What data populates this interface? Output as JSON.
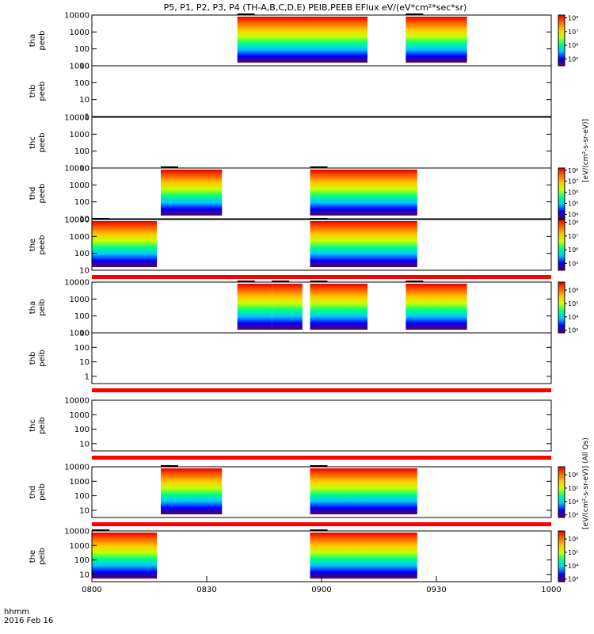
{
  "chart_data": {
    "type": "heatmap",
    "title": "P5, P1, P2, P3, P4 (TH-A,B,C,D,E) PEIB,PEEB EFlux eV/(eV*cm²*sec*sr)",
    "x_range": [
      "0800",
      "1000"
    ],
    "x_ticks": [
      "0800",
      "0830",
      "0900",
      "0930",
      "1000"
    ],
    "time_label": "hhmm",
    "date_label": "2016 Feb 16",
    "colormap": [
      "#5a005a",
      "#0000ff",
      "#00c8ff",
      "#00ff80",
      "#c8ff00",
      "#ffc800",
      "#ff6400",
      "#e60000"
    ],
    "colorbar_unit_electron": "[eV/(cm²-s-sr-eV)]",
    "colorbar_unit_ion": "[eV/(cm²-s-sr-eV)] (All Qs)",
    "panels": [
      {
        "label": [
          "tha",
          "peeb"
        ],
        "ylog": [
          1,
          4
        ],
        "yticks": [
          "10",
          "100",
          "1000",
          "10000"
        ],
        "intervals": [
          [
            "0838",
            "0912"
          ],
          [
            "0922",
            "0938"
          ]
        ],
        "bottom_gap": false,
        "colorbar": {
          "ticks": [
            "10⁵",
            "10⁶",
            "10⁷",
            "10⁸"
          ],
          "min_exp": 4.5,
          "max_exp": 8.2
        }
      },
      {
        "label": [
          "thb",
          "peeb"
        ],
        "ylog": [
          0,
          3
        ],
        "yticks": [
          "1",
          "10",
          "100",
          "1000"
        ],
        "intervals": [],
        "bottom_gap": false,
        "colorbar": null
      },
      {
        "label": [
          "thc",
          "peeb"
        ],
        "ylog": [
          1,
          4
        ],
        "yticks": [
          "10",
          "100",
          "1000",
          "10000"
        ],
        "intervals": [],
        "bottom_gap": false,
        "colorbar": null
      },
      {
        "label": [
          "thd",
          "peeb"
        ],
        "ylog": [
          1,
          4
        ],
        "yticks": [
          "10",
          "100",
          "1000",
          "10000"
        ],
        "intervals": [
          [
            "0818",
            "0834"
          ],
          [
            "0857",
            "0925"
          ]
        ],
        "bottom_gap": false,
        "colorbar": {
          "ticks": [
            "10⁴",
            "10⁵",
            "10⁶",
            "10⁷",
            "10⁸"
          ],
          "min_exp": 3.6,
          "max_exp": 8.2
        }
      },
      {
        "label": [
          "the",
          "peeb"
        ],
        "ylog": [
          1,
          4
        ],
        "yticks": [
          "10",
          "100",
          "1000",
          "10000"
        ],
        "intervals": [
          [
            "0800",
            "0817"
          ],
          [
            "0857",
            "0925"
          ]
        ],
        "bottom_gap": true,
        "colorbar": {
          "ticks": [
            "10⁵",
            "10⁶",
            "10⁷",
            "10⁸"
          ],
          "min_exp": 4.5,
          "max_exp": 8.2
        }
      },
      {
        "label": [
          "tha",
          "peib"
        ],
        "ylog": [
          1,
          4
        ],
        "yticks": [
          "10",
          "100",
          "1000",
          "10000"
        ],
        "intervals": [
          [
            "0838",
            "0847"
          ],
          [
            "0847",
            "0855"
          ],
          [
            "0857",
            "0912"
          ],
          [
            "0922",
            "0938"
          ]
        ],
        "bottom_gap": false,
        "colorbar": {
          "ticks": [
            "10³",
            "10⁴",
            "10⁵",
            "10⁶"
          ],
          "min_exp": 2.8,
          "max_exp": 6.6
        }
      },
      {
        "label": [
          "thb",
          "peib"
        ],
        "ylog": [
          -0.5,
          3
        ],
        "yticks": [
          "1",
          "10",
          "100",
          "1000"
        ],
        "intervals": [],
        "bottom_gap": true,
        "colorbar": null
      },
      {
        "label": [
          "thc",
          "peib"
        ],
        "ylog": [
          0.5,
          4
        ],
        "yticks": [
          "10",
          "100",
          "1000",
          "10000"
        ],
        "intervals": [],
        "bottom_gap": true,
        "colorbar": null
      },
      {
        "label": [
          "thd",
          "peib"
        ],
        "ylog": [
          0.5,
          4
        ],
        "yticks": [
          "10",
          "100",
          "1000",
          "10000"
        ],
        "intervals": [
          [
            "0818",
            "0834"
          ],
          [
            "0857",
            "0925"
          ]
        ],
        "bottom_gap": true,
        "colorbar": {
          "ticks": [
            "10³",
            "10⁴",
            "10⁵",
            "10⁶"
          ],
          "min_exp": 2.8,
          "max_exp": 6.6
        }
      },
      {
        "label": [
          "the",
          "peib"
        ],
        "ylog": [
          0.5,
          4
        ],
        "yticks": [
          "10",
          "100",
          "1000",
          "10000"
        ],
        "intervals": [
          [
            "0800",
            "0817"
          ],
          [
            "0857",
            "0925"
          ]
        ],
        "bottom_gap": false,
        "colorbar": {
          "ticks": [
            "10³",
            "10⁴",
            "10⁵",
            "10⁶"
          ],
          "min_exp": 2.8,
          "max_exp": 6.6
        }
      }
    ]
  }
}
